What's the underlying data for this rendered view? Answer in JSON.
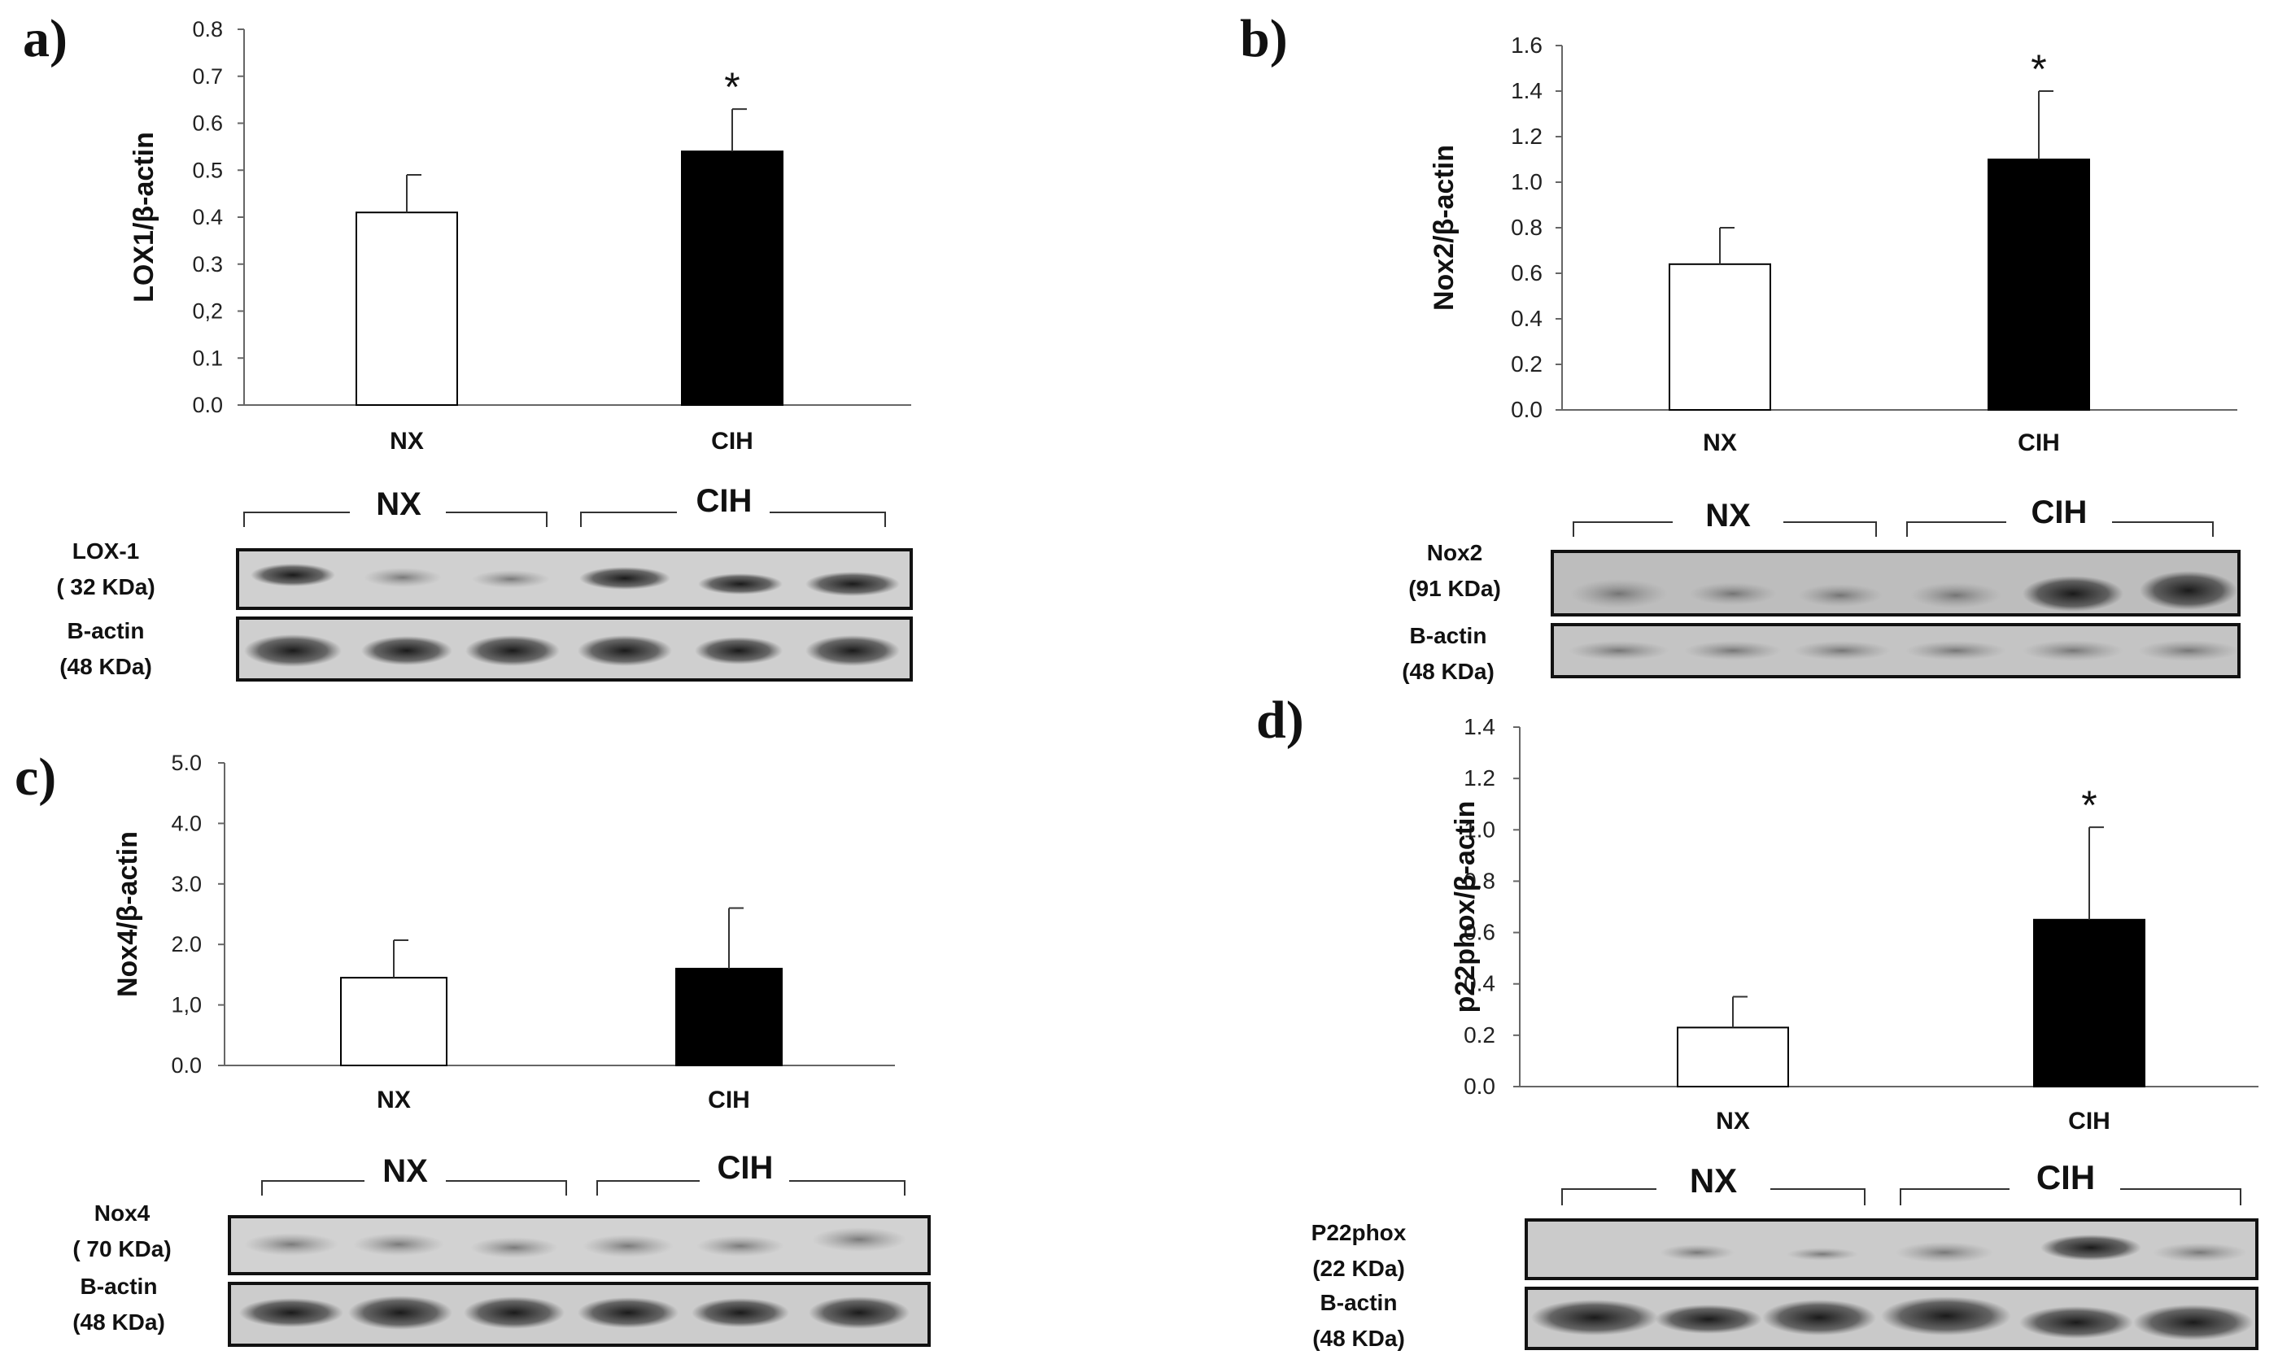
{
  "panels": [
    {
      "letter": "a)",
      "blot": {
        "protein": "LOX-1",
        "protein_kda": "( 32 KDa)",
        "control": "B-actin",
        "control_kda": "(48 KDa)",
        "groups": [
          "NX",
          "CIH"
        ]
      }
    },
    {
      "letter": "b)",
      "blot": {
        "protein": "Nox2",
        "protein_kda": "(91 KDa)",
        "control": "B-actin",
        "control_kda": "(48 KDa)",
        "groups": [
          "NX",
          "CIH"
        ]
      }
    },
    {
      "letter": "c)",
      "blot": {
        "protein": "Nox4",
        "protein_kda": "( 70 KDa)",
        "control": "B-actin",
        "control_kda": "(48 KDa)",
        "groups": [
          "NX",
          "CIH"
        ]
      }
    },
    {
      "letter": "d)",
      "blot": {
        "protein": "P22phox",
        "protein_kda": "(22 KDa)",
        "control": "B-actin",
        "control_kda": "(48 KDa)",
        "groups": [
          "NX",
          "CIH"
        ]
      }
    }
  ],
  "chart_data": [
    {
      "type": "bar",
      "panel": "a)",
      "ylabel": "LOX1/β-actin",
      "categories": [
        "NX",
        "CIH"
      ],
      "values": [
        0.41,
        0.54
      ],
      "errors": [
        0.08,
        0.09
      ],
      "significance": [
        "",
        "*"
      ],
      "ylim": [
        0,
        0.8
      ],
      "yticks": [
        "0.0",
        "0.1",
        "0,2",
        "0.3",
        "0.4",
        "0.5",
        "0.6",
        "0.7",
        "0.8"
      ],
      "bar_colors": [
        "#ffffff",
        "#000000"
      ],
      "grid": false
    },
    {
      "type": "bar",
      "panel": "b)",
      "ylabel": "Nox2/β-actin",
      "categories": [
        "NX",
        "CIH"
      ],
      "values": [
        0.64,
        1.1
      ],
      "errors": [
        0.16,
        0.3
      ],
      "significance": [
        "",
        "*"
      ],
      "ylim": [
        0,
        1.6
      ],
      "yticks": [
        "0.0",
        "0.2",
        "0.4",
        "0.6",
        "0.8",
        "1.0",
        "1.2",
        "1.4",
        "1.6"
      ],
      "bar_colors": [
        "#ffffff",
        "#000000"
      ],
      "grid": false
    },
    {
      "type": "bar",
      "panel": "c)",
      "ylabel": "Nox4/β-actin",
      "categories": [
        "NX",
        "CIH"
      ],
      "values": [
        1.45,
        1.6
      ],
      "errors": [
        0.62,
        1.0
      ],
      "significance": [
        "",
        ""
      ],
      "ylim": [
        0,
        5.0
      ],
      "yticks": [
        "0.0",
        "1,0",
        "2.0",
        "3.0",
        "4.0",
        "5.0"
      ],
      "bar_colors": [
        "#ffffff",
        "#000000"
      ],
      "grid": false
    },
    {
      "type": "bar",
      "panel": "d)",
      "ylabel": "p22phox/β-actin",
      "categories": [
        "NX",
        "CIH"
      ],
      "values": [
        0.23,
        0.65
      ],
      "errors": [
        0.12,
        0.36
      ],
      "significance": [
        "",
        "*"
      ],
      "ylim": [
        0,
        1.4
      ],
      "yticks": [
        "0.0",
        "0.2",
        "0.4",
        "0.6",
        "0.8",
        "1.0",
        "1.2",
        "1.4"
      ],
      "bar_colors": [
        "#ffffff",
        "#000000"
      ],
      "grid": false
    }
  ]
}
